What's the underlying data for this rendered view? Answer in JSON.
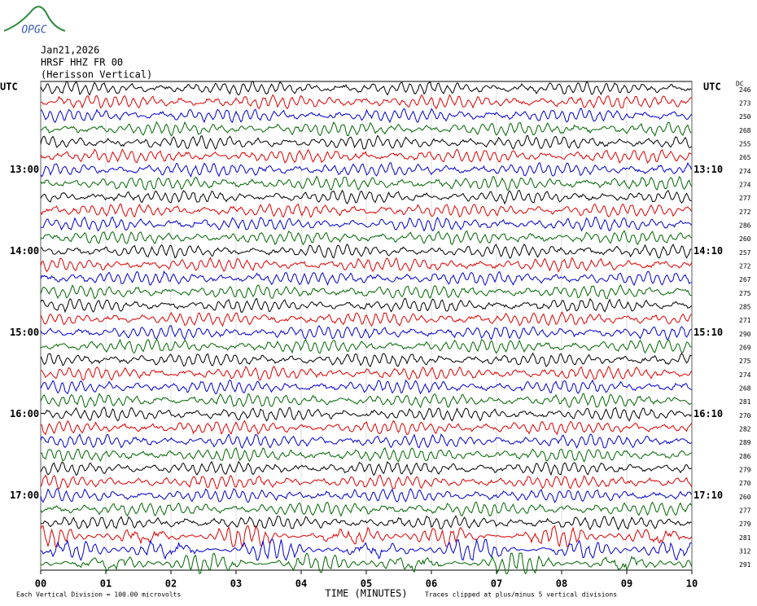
{
  "logo": "OPGC",
  "header": {
    "date": "Jan21,2026",
    "station": "HRSF HHZ FR 00",
    "location": "(Herisson Vertical)"
  },
  "utc_left": "UTC",
  "utc_right": "UTC",
  "dc_label": "DC",
  "left_times": [
    "13:00",
    "14:00",
    "15:00",
    "16:00",
    "17:00"
  ],
  "right_times": [
    "13:10",
    "14:10",
    "15:10",
    "16:10",
    "17:10"
  ],
  "dc_values": [
    246,
    273,
    250,
    268,
    255,
    265,
    274,
    274,
    277,
    272,
    286,
    260,
    257,
    272,
    267,
    275,
    285,
    271,
    290,
    269,
    275,
    274,
    268,
    281,
    270,
    282,
    289,
    286,
    279,
    270,
    260,
    277,
    279,
    281,
    312,
    291
  ],
  "x_ticks": [
    "00",
    "01",
    "02",
    "03",
    "04",
    "05",
    "06",
    "07",
    "08",
    "09",
    "10"
  ],
  "x_label": "TIME (MINUTES)",
  "footer": {
    "division": "Each Vertical Division =  100.00 microvolts",
    "clip": "Traces clipped at plus/minus 5 vertical divisions"
  }
}
